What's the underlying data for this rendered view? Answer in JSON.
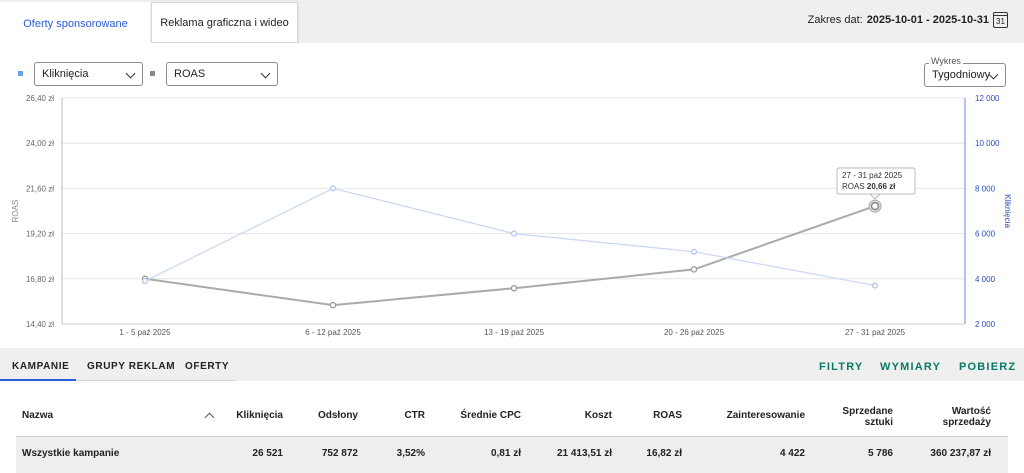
{
  "tabs": {
    "sponsored": "Oferty sponsorowane",
    "display": "Reklama graficzna i wideo"
  },
  "daterange": {
    "label": "Zakres dat:",
    "value": "2025-10-01 - 2025-10-31",
    "cal_day": "31"
  },
  "controls": {
    "metric1": "Kliknięcia",
    "metric1_color": "#6aa0e6",
    "metric2": "ROAS",
    "metric2_color": "#888888",
    "chart_mode_label": "Wykres",
    "chart_mode_value": "Tygodniowy"
  },
  "chart_data": {
    "type": "line",
    "categories": [
      "1 - 5 paź 2025",
      "6 - 12 paź 2025",
      "13 - 19 paź 2025",
      "20 - 26 paź 2025",
      "27 - 31 paź 2025"
    ],
    "left_axis": {
      "label": "ROAS",
      "ticks": [
        "26,40 zł",
        "24,00 zł",
        "21,60 zł",
        "19,20 zł",
        "16,80 zł",
        "14,40 zł"
      ],
      "tick_values": [
        26.4,
        24.0,
        21.6,
        19.2,
        16.8,
        14.4
      ],
      "ylim": [
        14.4,
        26.4
      ]
    },
    "right_axis": {
      "label": "Kliknięcia",
      "ticks": [
        "12 000",
        "10 000",
        "8 000",
        "6 000",
        "4 000",
        "2 000"
      ],
      "tick_values": [
        12000,
        10000,
        8000,
        6000,
        4000,
        2000
      ],
      "ylim": [
        2000,
        12000
      ]
    },
    "series": [
      {
        "name": "ROAS",
        "axis": "left",
        "color": "#aaaaaa",
        "values": [
          16.8,
          15.4,
          16.3,
          17.3,
          20.66
        ]
      },
      {
        "name": "Kliknięcia",
        "axis": "right",
        "color": "#c9d6f5",
        "values": [
          3900,
          8000,
          6000,
          5200,
          3700
        ]
      }
    ],
    "tooltip": {
      "title": "27 - 31 paź 2025",
      "label": "ROAS",
      "value": "20,66 zł",
      "index": 4
    },
    "grid": true
  },
  "bottom": {
    "tabs": [
      "KAMPANIE",
      "GRUPY REKLAM",
      "OFERTY"
    ],
    "actions": [
      "FILTRY",
      "WYMIARY",
      "POBIERZ"
    ]
  },
  "table": {
    "headers": {
      "name": "Nazwa",
      "clicks": "Kliknięcia",
      "impressions": "Odsłony",
      "ctr": "CTR",
      "cpc": "Średnie CPC",
      "cost": "Koszt",
      "roas": "ROAS",
      "interest": "Zainteresowanie",
      "sold1": "Sprzedane",
      "sold2": "sztuki",
      "value1": "Wartość",
      "value2": "sprzedaży"
    },
    "total": {
      "name": "Wszystkie kampanie",
      "clicks": "26 521",
      "impressions": "752 872",
      "ctr": "3,52%",
      "cpc": "0,81 zł",
      "cost": "21 413,51 zł",
      "roas": "16,82 zł",
      "interest": "4 422",
      "sold": "5 786",
      "value": "360 237,87 zł"
    }
  }
}
